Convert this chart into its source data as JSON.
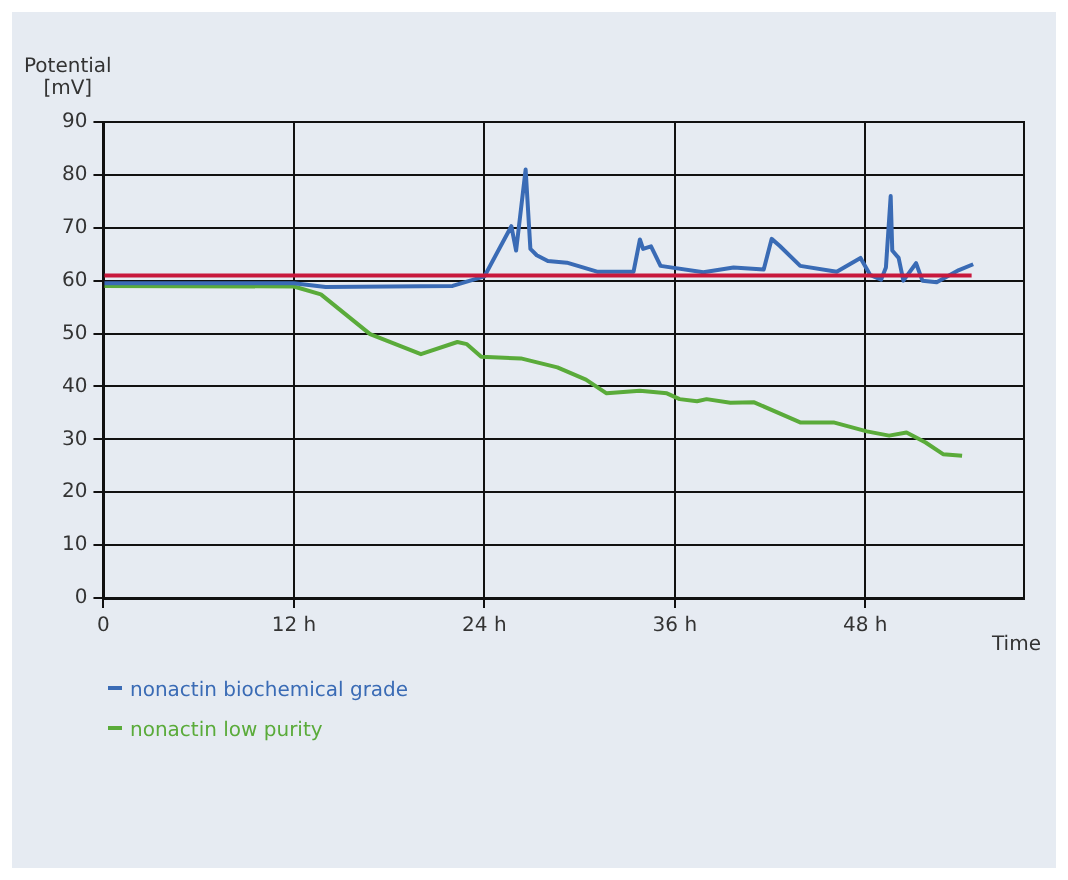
{
  "chart_data": {
    "type": "line",
    "ylabel": "Potential\n[mV]",
    "xlabel": "Time",
    "xlim": [
      0,
      58
    ],
    "xticks": [
      0,
      {
        "value": 12,
        "label": "12 h"
      },
      {
        "value": 24,
        "label": "24 h"
      },
      {
        "value": 36,
        "label": "36 h"
      },
      {
        "value": 48,
        "label": "48 h"
      }
    ],
    "ylim": [
      0,
      90
    ],
    "yticks": [
      0,
      10,
      20,
      30,
      40,
      50,
      60,
      70,
      80,
      90
    ],
    "grid": true,
    "legend": "bottom",
    "marker": "none",
    "line_style": "solid",
    "series": [
      {
        "color": "#c8183c",
        "x": [
          0,
          54.7
        ],
        "values": [
          61,
          61
        ]
      },
      {
        "name": "nonactin biochemical grade",
        "color": "#3a6bb5",
        "x": [
          0,
          12,
          14,
          22,
          24,
          25.7,
          26,
          26.6,
          26.9,
          27.3,
          28,
          29.2,
          31.1,
          33.4,
          33.8,
          34,
          34.5,
          35.1,
          37.8,
          39.7,
          41.6,
          42.1,
          42.6,
          43.9,
          46.2,
          47.7,
          48.3,
          49,
          49.3,
          49.6,
          49.7,
          50.1,
          50.4,
          51.2,
          51.6,
          52.5,
          53.9,
          54.8
        ],
        "values": [
          59.5,
          59.5,
          58.8,
          59,
          60.8,
          70.3,
          65.7,
          81,
          66,
          64.8,
          63.7,
          63.4,
          61.7,
          61.7,
          67.8,
          66,
          66.5,
          62.8,
          61.6,
          62.5,
          62.1,
          67.9,
          66.6,
          62.8,
          61.7,
          64.3,
          61.1,
          60.2,
          62.5,
          76,
          65.7,
          64.3,
          60,
          63.3,
          60,
          59.7,
          62,
          63.1
        ]
      },
      {
        "name": "nonactin low purity",
        "color": "#5aab3a",
        "x": [
          0,
          12,
          13.7,
          16.8,
          20,
          22.3,
          22.9,
          23.8,
          26.3,
          28.6,
          30.4,
          31.7,
          33.8,
          35.5,
          36.3,
          37.4,
          38,
          39.5,
          41,
          43.9,
          46,
          48.1,
          49.5,
          50.6,
          51.8,
          52.9,
          54.1
        ],
        "values": [
          59,
          58.9,
          57.4,
          49.9,
          46.1,
          48.4,
          48,
          45.6,
          45.3,
          43.6,
          41.3,
          38.7,
          39.2,
          38.7,
          37.6,
          37.2,
          37.6,
          36.9,
          37,
          33.2,
          33.2,
          31.5,
          30.7,
          31.3,
          29.4,
          27.2,
          26.9
        ]
      }
    ]
  }
}
